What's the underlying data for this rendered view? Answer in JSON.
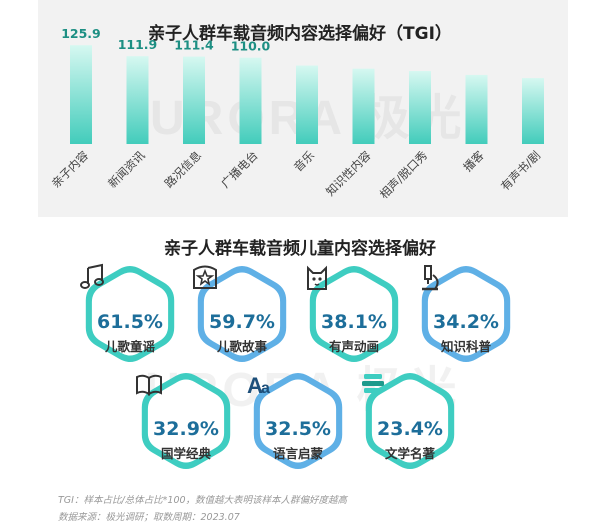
{
  "brand": {
    "watermark": "URORA 极光"
  },
  "chart_data": [
    {
      "type": "bar",
      "title": "亲子人群车载音频内容选择偏好（TGI）",
      "categories": [
        "亲子内容",
        "新闻资讯",
        "路况信息",
        "广播电台",
        "音乐",
        "知识性内容",
        "相声/脱口秀",
        "播客",
        "有声书/剧"
      ],
      "values": [
        125.9,
        111.9,
        111.4,
        110.0,
        100,
        96,
        93,
        88,
        84
      ],
      "labeled_values": [
        "125.9",
        "111.9",
        "111.4",
        "110.0",
        "",
        "",
        "",
        "",
        ""
      ],
      "ylim": [
        0,
        130
      ],
      "grid": false,
      "colors": [
        "#d6f8f1",
        "#42ccbb"
      ]
    },
    {
      "type": "table",
      "title": "亲子人群车载音频儿童内容选择偏好",
      "items": [
        {
          "label": "儿歌童谣",
          "value": "61.5%",
          "icon": "music-note-icon",
          "color": "#3ecdc1"
        },
        {
          "label": "儿歌故事",
          "value": "59.7%",
          "icon": "storybook-icon",
          "color": "#5fb0e6"
        },
        {
          "label": "有声动画",
          "value": "38.1%",
          "icon": "cartoon-cat-icon",
          "color": "#3ecdc1"
        },
        {
          "label": "知识科普",
          "value": "34.2%",
          "icon": "microscope-icon",
          "color": "#5fb0e6"
        },
        {
          "label": "国学经典",
          "value": "32.9%",
          "icon": "open-book-icon",
          "color": "#3ecdc1"
        },
        {
          "label": "语言启蒙",
          "value": "32.5%",
          "icon": "letters-icon",
          "color": "#5fb0e6"
        },
        {
          "label": "文学名著",
          "value": "23.4%",
          "icon": "book-stack-icon",
          "color": "#3ecdc1"
        }
      ]
    }
  ],
  "footer": {
    "note": "TGI：样本占比/总体占比*100，数值越大表明该样本人群偏好度越高",
    "source": "数据来源：极光调研；取数周期：2023.07"
  }
}
